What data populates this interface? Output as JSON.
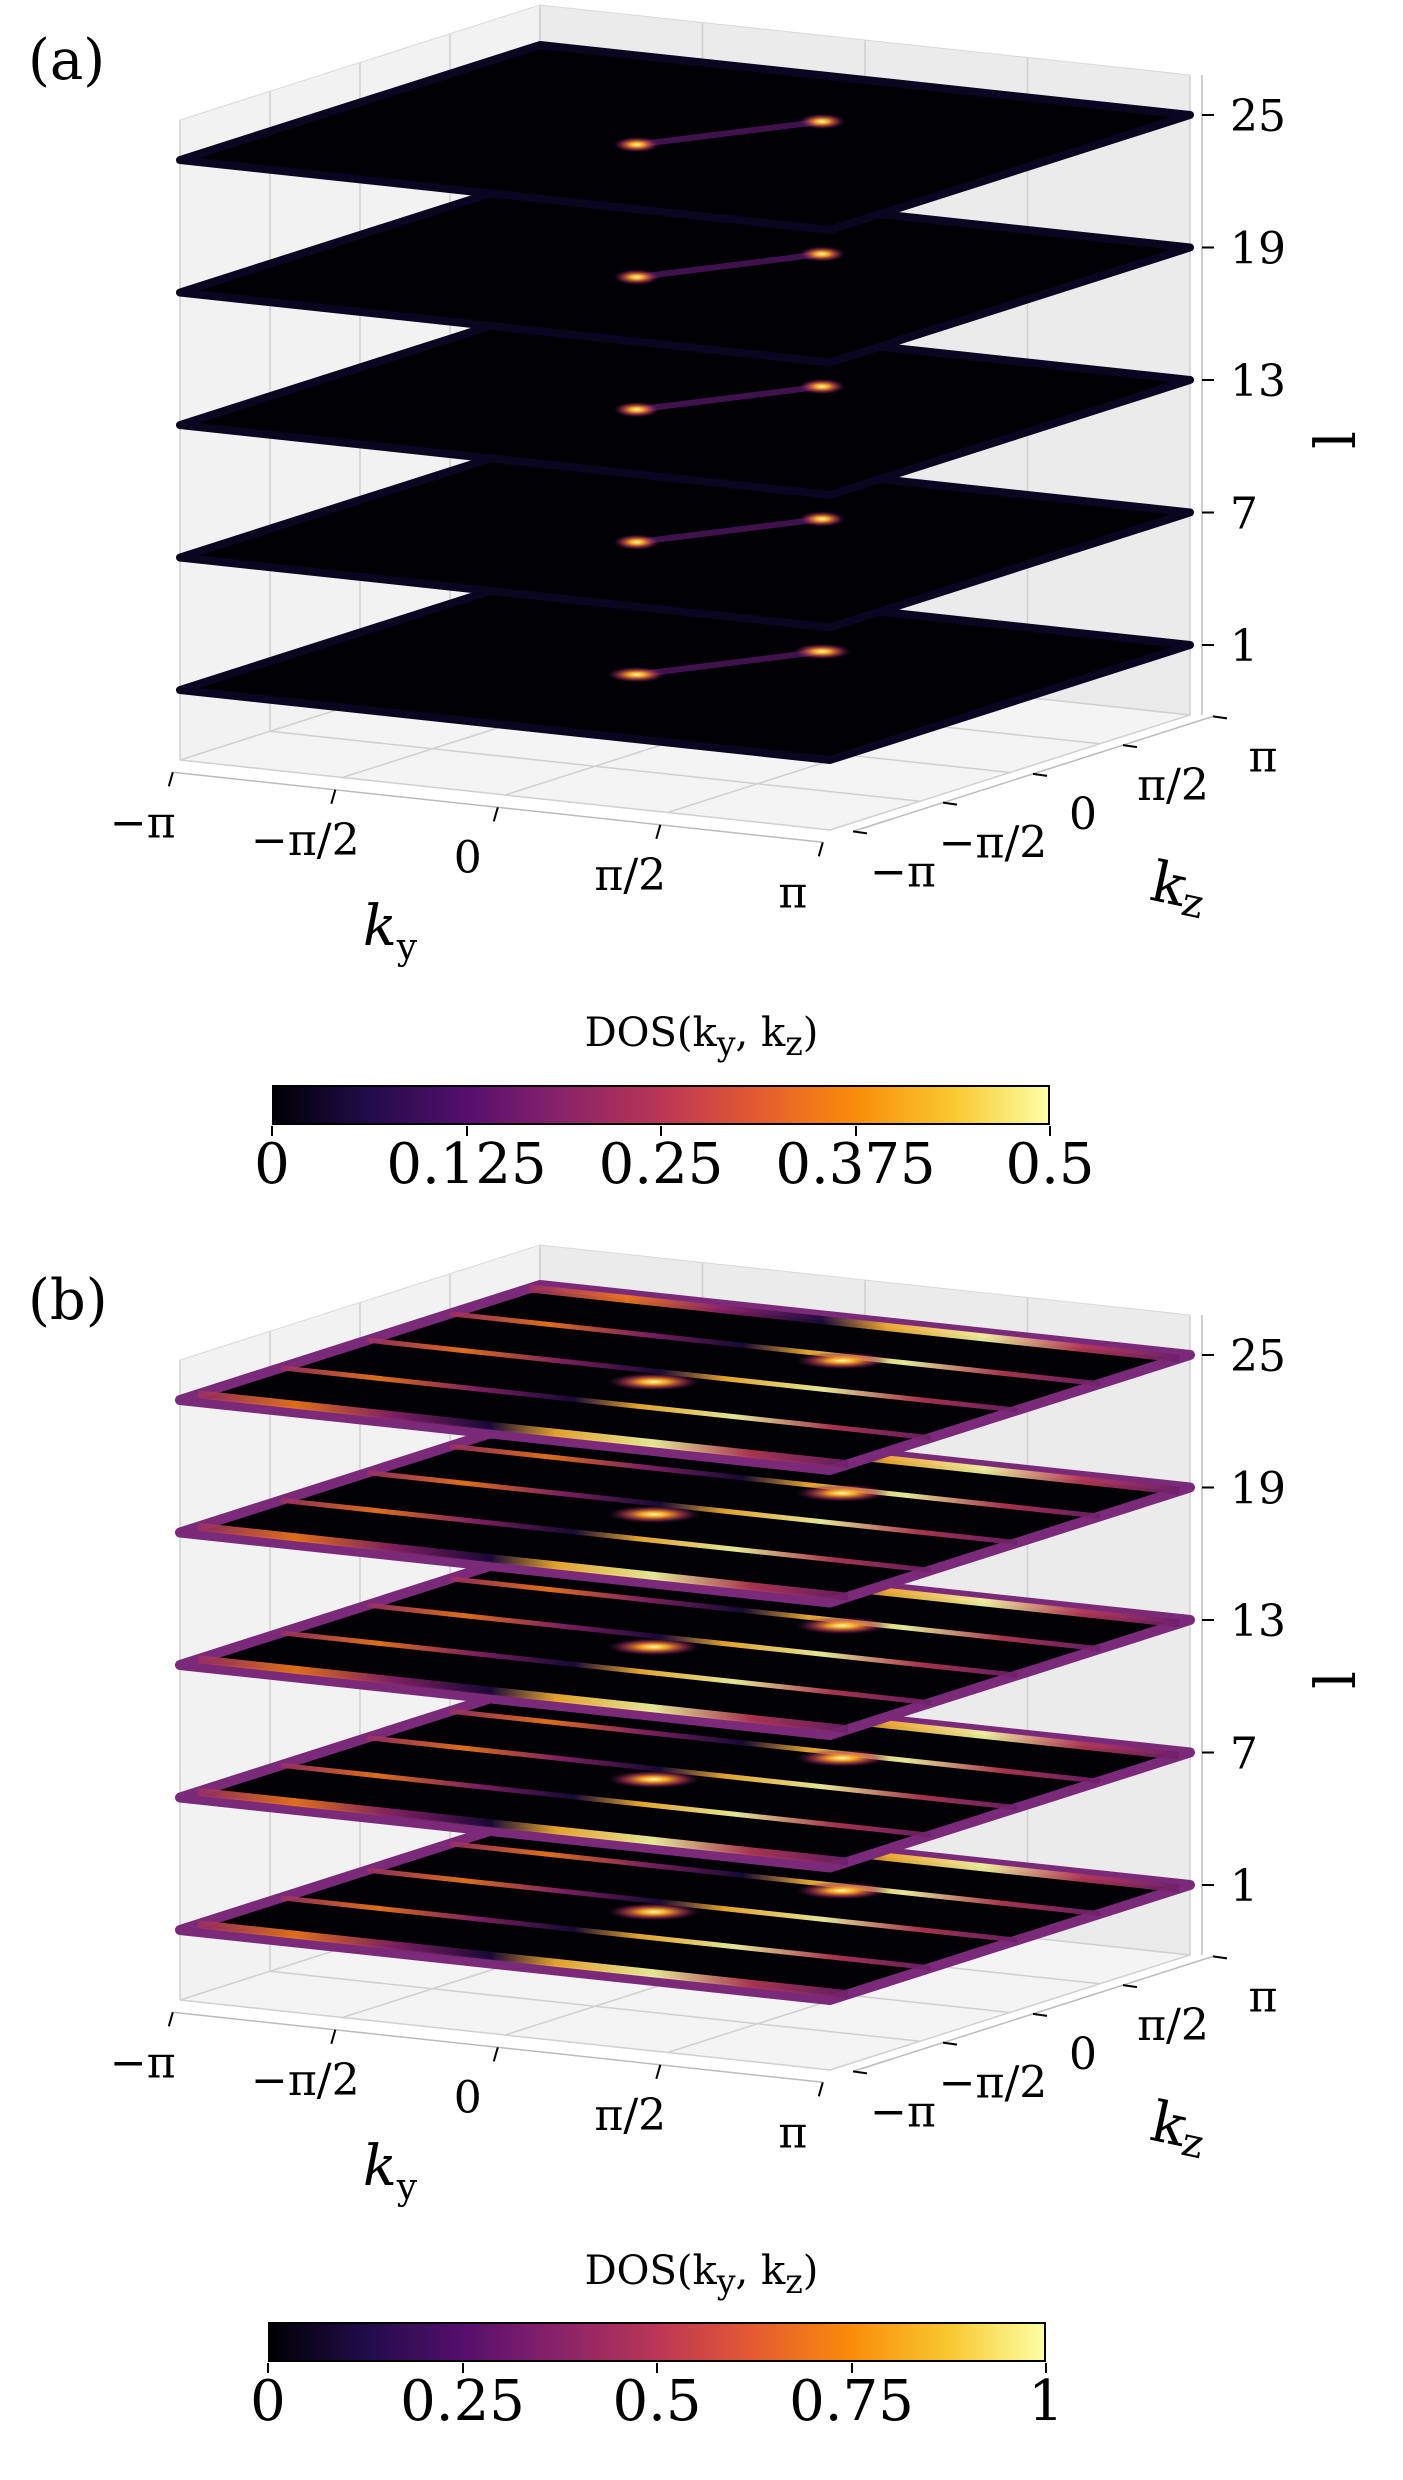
{
  "panels": [
    {
      "label": "(a)",
      "chart_data": {
        "type": "heatmap",
        "title": "",
        "colormap": "inferno",
        "colorbar_label": "DOS(k_y, k_z)",
        "colorbar_range": [
          0,
          0.5
        ],
        "colorbar_ticks": [
          "0",
          "0.125",
          "0.25",
          "0.375",
          "0.5"
        ],
        "xlabel": "k_y",
        "ylabel": "k_z",
        "zlabel": "l",
        "x_ticks": [
          "−π",
          "−π/2",
          "0",
          "π/2",
          "π"
        ],
        "y_ticks": [
          "−π",
          "−π/2",
          "0",
          "π/2",
          "π"
        ],
        "z_ticks": [
          "1",
          "7",
          "13",
          "19",
          "25"
        ],
        "layers": [
          1,
          7,
          13,
          19,
          25
        ],
        "peak_description": "two bright spots near k_y ≈ ±π/4 connected by a faint band on each layer"
      }
    },
    {
      "label": "(b)",
      "chart_data": {
        "type": "heatmap",
        "title": "",
        "colormap": "inferno",
        "colorbar_label": "DOS(k_y, k_z)",
        "colorbar_range": [
          0,
          1
        ],
        "colorbar_ticks": [
          "0",
          "0.25",
          "0.5",
          "0.75",
          "1"
        ],
        "xlabel": "k_y",
        "ylabel": "k_z",
        "zlabel": "l",
        "x_ticks": [
          "−π",
          "−π/2",
          "0",
          "π/2",
          "π"
        ],
        "y_ticks": [
          "−π",
          "−π/2",
          "0",
          "π/2",
          "π"
        ],
        "z_ticks": [
          "1",
          "7",
          "13",
          "19",
          "25"
        ],
        "layers": [
          1,
          7,
          13,
          19,
          25
        ],
        "peak_description": "striped pattern along k_y with bright central lobes on each layer"
      }
    }
  ]
}
